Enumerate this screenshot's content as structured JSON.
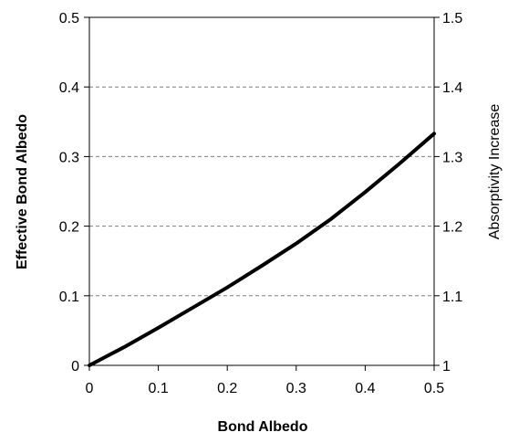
{
  "chart_data": {
    "type": "line",
    "xlabel": "Bond Albedo",
    "ylabel": "Effective Bond Albedo",
    "y2label": "Absorptivity Increase",
    "xlim": [
      0,
      0.5
    ],
    "ylim": [
      0,
      0.5
    ],
    "y2lim": [
      1,
      1.5
    ],
    "x_ticks": [
      "0",
      "0.1",
      "0.2",
      "0.3",
      "0.4",
      "0.5"
    ],
    "y_ticks": [
      "0",
      "0.1",
      "0.2",
      "0.3",
      "0.4",
      "0.5"
    ],
    "y2_ticks": [
      "1",
      "1.1",
      "1.2",
      "1.3",
      "1.4",
      "1.5"
    ],
    "grid": "horizontal dashed",
    "line_color": "#000000",
    "series": [
      {
        "x": [
          0,
          0.05,
          0.1,
          0.15,
          0.2,
          0.25,
          0.3,
          0.35,
          0.4,
          0.45,
          0.5
        ],
        "y": [
          0,
          0.026,
          0.054,
          0.083,
          0.112,
          0.143,
          0.175,
          0.21,
          0.249,
          0.29,
          0.333
        ]
      }
    ]
  }
}
